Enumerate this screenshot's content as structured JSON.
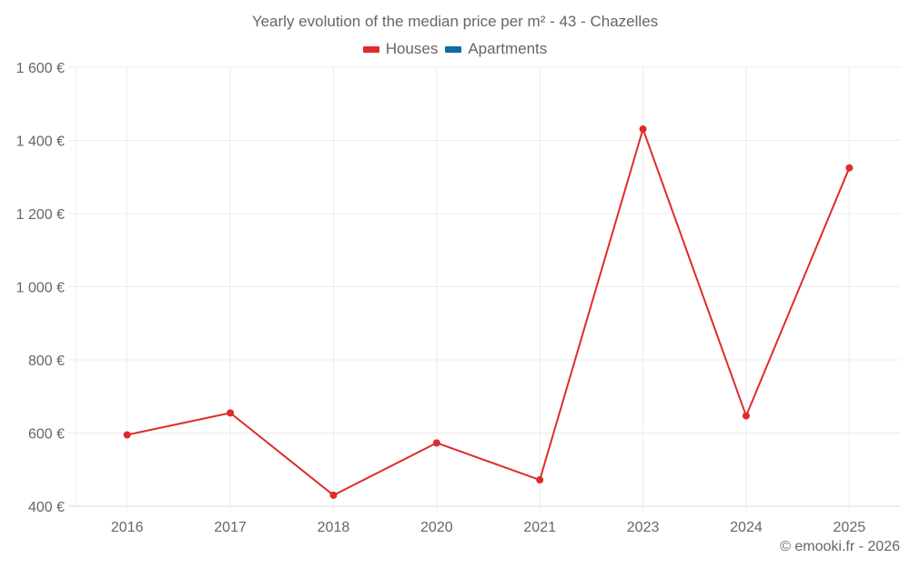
{
  "title": "Yearly evolution of the median price per m² - 43 - Chazelles",
  "legend": [
    {
      "label": "Houses",
      "color": "#dd2c2c"
    },
    {
      "label": "Apartments",
      "color": "#0e6ba3"
    }
  ],
  "credit": "© emooki.fr - 2026",
  "chart_data": {
    "type": "line",
    "title": "Yearly evolution of the median price per m² - 43 - Chazelles",
    "xlabel": "",
    "ylabel": "",
    "categories": [
      "2016",
      "2017",
      "2018",
      "2020",
      "2021",
      "2023",
      "2024",
      "2025"
    ],
    "series": [
      {
        "name": "Houses",
        "color": "#dd2c2c",
        "values": [
          595,
          655,
          430,
          573,
          472,
          1431,
          647,
          1325
        ]
      },
      {
        "name": "Apartments",
        "color": "#0e6ba3",
        "values": []
      }
    ],
    "yticks": [
      "400 €",
      "600 €",
      "800 €",
      "1 000 €",
      "1 200 €",
      "1 400 €",
      "1 600 €"
    ],
    "ylim": [
      400,
      1600
    ],
    "grid": true,
    "legend_position": "top"
  }
}
